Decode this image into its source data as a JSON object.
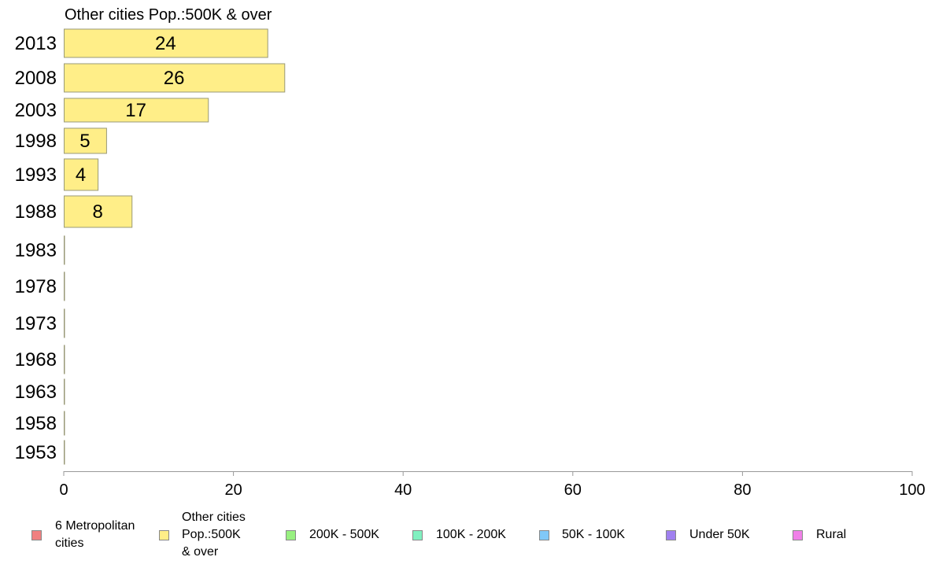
{
  "chart_data": {
    "type": "bar",
    "orientation": "horizontal",
    "title": "Other cities Pop.:500K & over",
    "categories": [
      "2013",
      "2008",
      "2003",
      "1998",
      "1993",
      "1988",
      "1983",
      "1978",
      "1973",
      "1968",
      "1963",
      "1958",
      "1953"
    ],
    "values": [
      24,
      26,
      17,
      5,
      4,
      8,
      0,
      0,
      0,
      0,
      0,
      0,
      0
    ],
    "data_labels": [
      "24",
      "26",
      "17",
      "5",
      "4",
      "8",
      "",
      "",
      "",
      "",
      "",
      "",
      ""
    ],
    "xlim": [
      0,
      100
    ],
    "xticks": [
      "0",
      "20",
      "40",
      "60",
      "80",
      "100"
    ],
    "xlabel": "",
    "ylabel": "",
    "grid": false,
    "bar_color": "#ffee88",
    "bar_edge_color": "#999977",
    "legend": {
      "placement": "bottom",
      "items": [
        {
          "label": "6 Metropolitan\n cities",
          "color": "#f08080"
        },
        {
          "label": "Other cities\nPop.:500K\n & over",
          "color": "#ffee88"
        },
        {
          "label": "200K - 500K",
          "color": "#98f080"
        },
        {
          "label": "100K - 200K",
          "color": "#80f0c0"
        },
        {
          "label": "50K - 100K",
          "color": "#80c8f8"
        },
        {
          "label": "Under 50K",
          "color": "#a080f0"
        },
        {
          "label": "Rural",
          "color": "#f080e8"
        }
      ]
    }
  }
}
